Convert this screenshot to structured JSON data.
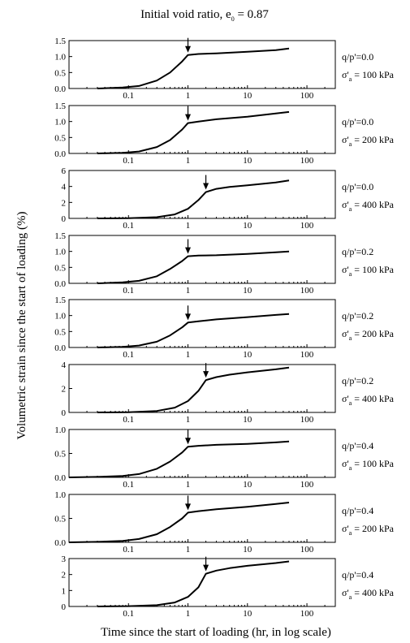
{
  "figure": {
    "title": "Initial void ratio, e",
    "title_subscript": "0",
    "title_value": " = 0.87",
    "xlabel": "Time since the start of loading (hr, in log scale)",
    "ylabel": "Volumetric strain since the start of loading (%)"
  },
  "chart_data": [
    {
      "type": "line",
      "panel": 1,
      "stress_ratio_label": "q/p'=0.0",
      "stress_symbol": "σ'",
      "stress_subscript": "a",
      "stress_value": " = 100 kPa",
      "x_scale": "log",
      "xlim": [
        0.01,
        300
      ],
      "x_ticks": [
        0.1,
        1,
        10,
        100
      ],
      "x_tick_labels": [
        "0.1",
        "1",
        "10",
        "100"
      ],
      "ylim": [
        0,
        1.5
      ],
      "y_ticks": [
        0,
        0.5,
        1.0,
        1.5
      ],
      "y_tick_labels": [
        "0.0",
        "0.5",
        "1.0",
        "1.5"
      ],
      "arrow_x": 1,
      "series": [
        {
          "x": [
            0.03,
            0.08,
            0.15,
            0.3,
            0.5,
            0.8,
            1.0,
            1.5,
            3,
            10,
            30,
            50
          ],
          "y": [
            0.0,
            0.03,
            0.08,
            0.25,
            0.5,
            0.85,
            1.05,
            1.08,
            1.1,
            1.15,
            1.2,
            1.25
          ]
        }
      ]
    },
    {
      "type": "line",
      "panel": 2,
      "stress_ratio_label": "q/p'=0.0",
      "stress_symbol": "σ'",
      "stress_subscript": "a",
      "stress_value": " = 200 kPa",
      "x_scale": "log",
      "xlim": [
        0.01,
        300
      ],
      "x_ticks": [
        0.1,
        1,
        10,
        100
      ],
      "x_tick_labels": [
        "0.1",
        "1",
        "10",
        "100"
      ],
      "ylim": [
        0,
        1.5
      ],
      "y_ticks": [
        0,
        0.5,
        1.0,
        1.5
      ],
      "y_tick_labels": [
        "0.0",
        "0.5",
        "1.0",
        "1.5"
      ],
      "arrow_x": 1,
      "series": [
        {
          "x": [
            0.03,
            0.08,
            0.15,
            0.3,
            0.5,
            0.8,
            1.0,
            1.5,
            3,
            10,
            30,
            50
          ],
          "y": [
            0.0,
            0.02,
            0.06,
            0.2,
            0.42,
            0.75,
            0.95,
            1.0,
            1.07,
            1.15,
            1.25,
            1.3
          ]
        }
      ]
    },
    {
      "type": "line",
      "panel": 3,
      "stress_ratio_label": "q/p'=0.0",
      "stress_symbol": "σ'",
      "stress_subscript": "a",
      "stress_value": " = 400 kPa",
      "x_scale": "log",
      "xlim": [
        0.01,
        300
      ],
      "x_ticks": [
        0.1,
        1,
        10,
        100
      ],
      "x_tick_labels": [
        "0.1",
        "1",
        "10",
        "100"
      ],
      "ylim": [
        0,
        6
      ],
      "y_ticks": [
        0,
        2,
        4,
        6
      ],
      "y_tick_labels": [
        "0",
        "2",
        "4",
        "6"
      ],
      "arrow_x": 2,
      "series": [
        {
          "x": [
            0.03,
            0.1,
            0.3,
            0.6,
            1.0,
            1.5,
            2.0,
            3,
            5,
            10,
            30,
            50
          ],
          "y": [
            0.0,
            0.02,
            0.15,
            0.5,
            1.2,
            2.3,
            3.3,
            3.7,
            3.95,
            4.15,
            4.5,
            4.75
          ]
        }
      ]
    },
    {
      "type": "line",
      "panel": 4,
      "stress_ratio_label": "q/p'=0.2",
      "stress_symbol": "σ'",
      "stress_subscript": "a",
      "stress_value": " = 100 kPa",
      "x_scale": "log",
      "xlim": [
        0.01,
        300
      ],
      "x_ticks": [
        0.1,
        1,
        10,
        100
      ],
      "x_tick_labels": [
        "0.1",
        "1",
        "10",
        "100"
      ],
      "ylim": [
        0,
        1.5
      ],
      "y_ticks": [
        0,
        0.5,
        1.0,
        1.5
      ],
      "y_tick_labels": [
        "0.0",
        "0.5",
        "1.0",
        "1.5"
      ],
      "arrow_x": 1,
      "series": [
        {
          "x": [
            0.03,
            0.08,
            0.15,
            0.3,
            0.5,
            0.8,
            1.0,
            1.5,
            3,
            10,
            30,
            50
          ],
          "y": [
            0.0,
            0.03,
            0.08,
            0.22,
            0.45,
            0.7,
            0.85,
            0.87,
            0.88,
            0.92,
            0.97,
            1.0
          ]
        }
      ]
    },
    {
      "type": "line",
      "panel": 5,
      "stress_ratio_label": "q/p'=0.2",
      "stress_symbol": "σ'",
      "stress_subscript": "a",
      "stress_value": " = 200 kPa",
      "x_scale": "log",
      "xlim": [
        0.01,
        300
      ],
      "x_ticks": [
        0.1,
        1,
        10,
        100
      ],
      "x_tick_labels": [
        "0.1",
        "1",
        "10",
        "100"
      ],
      "ylim": [
        0,
        1.5
      ],
      "y_ticks": [
        0,
        0.5,
        1.0,
        1.5
      ],
      "y_tick_labels": [
        "0.0",
        "0.5",
        "1.0",
        "1.5"
      ],
      "arrow_x": 1,
      "series": [
        {
          "x": [
            0.03,
            0.08,
            0.15,
            0.3,
            0.5,
            0.8,
            1.0,
            1.5,
            3,
            10,
            30,
            50
          ],
          "y": [
            0.0,
            0.02,
            0.06,
            0.18,
            0.38,
            0.63,
            0.78,
            0.82,
            0.88,
            0.95,
            1.02,
            1.05
          ]
        }
      ]
    },
    {
      "type": "line",
      "panel": 6,
      "stress_ratio_label": "q/p'=0.2",
      "stress_symbol": "σ'",
      "stress_subscript": "a",
      "stress_value": " = 400 kPa",
      "x_scale": "log",
      "xlim": [
        0.01,
        300
      ],
      "x_ticks": [
        0.1,
        1,
        10,
        100
      ],
      "x_tick_labels": [
        "0.1",
        "1",
        "10",
        "100"
      ],
      "ylim": [
        0,
        4
      ],
      "y_ticks": [
        0,
        2,
        4
      ],
      "y_tick_labels": [
        "0",
        "2",
        "4"
      ],
      "arrow_x": 2,
      "series": [
        {
          "x": [
            0.03,
            0.1,
            0.3,
            0.6,
            1.0,
            1.5,
            2.0,
            3,
            5,
            10,
            30,
            50
          ],
          "y": [
            0.0,
            0.02,
            0.12,
            0.4,
            0.95,
            1.8,
            2.7,
            2.95,
            3.15,
            3.35,
            3.6,
            3.75
          ]
        }
      ]
    },
    {
      "type": "line",
      "panel": 7,
      "stress_ratio_label": "q/p'=0.4",
      "stress_symbol": "σ'",
      "stress_subscript": "a",
      "stress_value": " = 100 kPa",
      "x_scale": "log",
      "xlim": [
        0.01,
        300
      ],
      "x_ticks": [
        0.1,
        1,
        10,
        100
      ],
      "x_tick_labels": [
        "0.1",
        "1",
        "10",
        "100"
      ],
      "ylim": [
        0,
        1.0
      ],
      "y_ticks": [
        0,
        0.5,
        1.0
      ],
      "y_tick_labels": [
        "0.0",
        "0.5",
        "1.0"
      ],
      "arrow_x": 1,
      "series": [
        {
          "x": [
            0.01,
            0.03,
            0.08,
            0.15,
            0.3,
            0.5,
            0.8,
            1.0,
            1.5,
            3,
            10,
            30,
            50
          ],
          "y": [
            0.0,
            0.01,
            0.03,
            0.07,
            0.18,
            0.33,
            0.52,
            0.64,
            0.66,
            0.68,
            0.7,
            0.73,
            0.75
          ]
        }
      ]
    },
    {
      "type": "line",
      "panel": 8,
      "stress_ratio_label": "q/p'=0.4",
      "stress_symbol": "σ'",
      "stress_subscript": "a",
      "stress_value": " = 200 kPa",
      "x_scale": "log",
      "xlim": [
        0.01,
        300
      ],
      "x_ticks": [
        0.1,
        1,
        10,
        100
      ],
      "x_tick_labels": [
        "0.1",
        "1",
        "10",
        "100"
      ],
      "ylim": [
        0,
        1.0
      ],
      "y_ticks": [
        0,
        0.5,
        1.0
      ],
      "y_tick_labels": [
        "0.0",
        "0.5",
        "1.0"
      ],
      "arrow_x": 1,
      "series": [
        {
          "x": [
            0.01,
            0.03,
            0.08,
            0.15,
            0.3,
            0.5,
            0.8,
            1.0,
            1.5,
            3,
            10,
            30,
            50
          ],
          "y": [
            0.0,
            0.01,
            0.03,
            0.07,
            0.17,
            0.32,
            0.5,
            0.62,
            0.65,
            0.69,
            0.74,
            0.8,
            0.83
          ]
        }
      ]
    },
    {
      "type": "line",
      "panel": 9,
      "stress_ratio_label": "q/p'=0.4",
      "stress_symbol": "σ'",
      "stress_subscript": "a",
      "stress_value": " = 400 kPa",
      "x_scale": "log",
      "xlim": [
        0.01,
        300
      ],
      "x_ticks": [
        0.1,
        1,
        10,
        100
      ],
      "x_tick_labels": [
        "0.1",
        "1",
        "10",
        "100"
      ],
      "ylim": [
        0,
        3
      ],
      "y_ticks": [
        0,
        1,
        2,
        3
      ],
      "y_tick_labels": [
        "0",
        "1",
        "2",
        "3"
      ],
      "arrow_x": 2,
      "series": [
        {
          "x": [
            0.03,
            0.1,
            0.3,
            0.6,
            1.0,
            1.5,
            2.0,
            3,
            5,
            10,
            30,
            50
          ],
          "y": [
            0.0,
            0.02,
            0.08,
            0.25,
            0.6,
            1.2,
            2.05,
            2.25,
            2.4,
            2.55,
            2.72,
            2.82
          ]
        }
      ]
    }
  ]
}
